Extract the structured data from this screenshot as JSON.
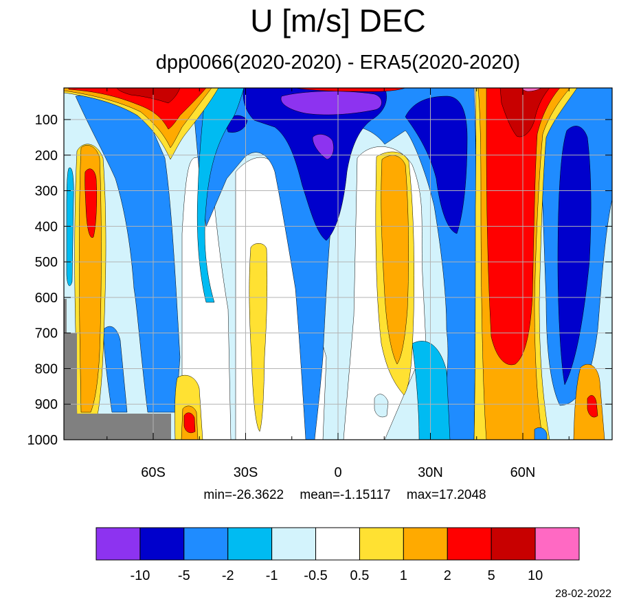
{
  "header": {
    "title": "U [m/s] DEC",
    "subtitle": "dpp0066(2020-2020) - ERA5(2020-2020)"
  },
  "stats": {
    "min": "min=-26.3622",
    "mean": "mean=-1.15117",
    "max": "max=17.2048"
  },
  "footer": {
    "date": "28-02-2022"
  },
  "chart_data": {
    "type": "heatmap",
    "title": "U [m/s] DEC",
    "subtitle": "dpp0066(2020-2020) - ERA5(2020-2020)",
    "x_ticks": [
      {
        "value": -60,
        "label": "60S"
      },
      {
        "value": -30,
        "label": "30S"
      },
      {
        "value": 0,
        "label": "0"
      },
      {
        "value": 30,
        "label": "30N"
      },
      {
        "value": 60,
        "label": "60N"
      }
    ],
    "y_ticks": [
      100,
      200,
      300,
      400,
      500,
      600,
      700,
      800,
      900,
      1000
    ],
    "xlim": [
      -89,
      89
    ],
    "ylim": [
      1000,
      10
    ],
    "grid": true,
    "colorbar": {
      "levels": [
        -10,
        -5,
        -2,
        -1,
        -0.5,
        0.5,
        1,
        2,
        5,
        10
      ],
      "colors": [
        "#8d33f0",
        "#0000cc",
        "#1f8cff",
        "#00bbf2",
        "#d3f3fc",
        "#ffffff",
        "#ffe132",
        "#ffaa00",
        "#ff0000",
        "#c80000",
        "#ff69c3"
      ]
    },
    "features": [
      {
        "lat": -75,
        "p_top": 220,
        "p_bot": 930,
        "value_class": 2
      },
      {
        "lat": -60,
        "p_top": 10,
        "p_bot": 1000,
        "value_class": -2
      },
      {
        "lat": -55,
        "p_top": 10,
        "p_bot": 130,
        "value_class": 5
      },
      {
        "lat": -30,
        "p_top": 10,
        "p_bot": 200,
        "value_class": -2
      },
      {
        "lat": 0,
        "p_top": 10,
        "p_bot": 350,
        "value_class": -5
      },
      {
        "lat": -1,
        "p_top": 20,
        "p_bot": 60,
        "value_class": -10
      },
      {
        "lat": 20,
        "p_top": 200,
        "p_bot": 610,
        "value_class": 2
      },
      {
        "lat": 35,
        "p_top": 10,
        "p_bot": 400,
        "value_class": -5
      },
      {
        "lat": 55,
        "p_top": 10,
        "p_bot": 1000,
        "value_class": 5
      },
      {
        "lat": 57,
        "p_top": 10,
        "p_bot": 100,
        "value_class": 10
      },
      {
        "lat": 78,
        "p_top": 100,
        "p_bot": 560,
        "value_class": -5
      }
    ]
  }
}
